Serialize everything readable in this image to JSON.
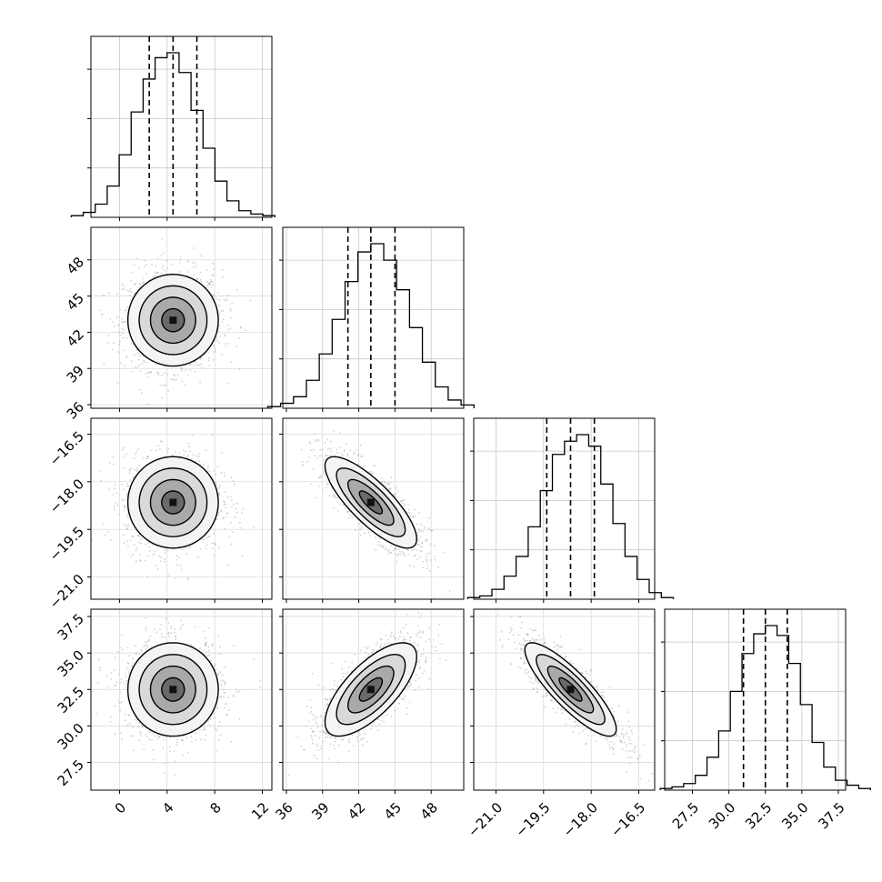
{
  "chart_data": {
    "type": "corner",
    "parameters": [
      {
        "ticks": [
          0,
          4,
          8,
          12
        ],
        "tick_labels": [
          "0",
          "4",
          "8",
          "12"
        ],
        "range": [
          -2.4,
          12.8
        ],
        "mean": 4.5,
        "sigma": 1.9,
        "quantiles": [
          2.5,
          4.5,
          6.5
        ]
      },
      {
        "ticks": [
          36,
          39,
          42,
          45,
          48
        ],
        "tick_labels": [
          "36",
          "39",
          "42",
          "45",
          "48"
        ],
        "range": [
          35.7,
          50.7
        ],
        "mean": 43.0,
        "sigma": 1.9,
        "quantiles": [
          41.1,
          43.0,
          45.0
        ]
      },
      {
        "ticks": [
          -21.0,
          -19.5,
          -18.0,
          -16.5
        ],
        "tick_labels": [
          "−21.0",
          "−19.5",
          "−18.0",
          "−16.5"
        ],
        "range": [
          -21.7,
          -16.0
        ],
        "mean": -18.65,
        "sigma": 0.72,
        "quantiles": [
          -19.4,
          -18.65,
          -17.9
        ]
      },
      {
        "ticks": [
          27.5,
          30.0,
          32.5,
          35.0,
          37.5
        ],
        "tick_labels": [
          "27.5",
          "30.0",
          "32.5",
          "35.0",
          "37.5"
        ],
        "range": [
          25.6,
          38.0
        ],
        "mean": 32.5,
        "sigma": 1.6,
        "quantiles": [
          31.0,
          32.5,
          34.0
        ]
      }
    ],
    "correlations": [
      [
        1.0,
        0.0,
        0.0,
        0.0
      ],
      [
        0.0,
        1.0,
        -0.8,
        0.7
      ],
      [
        0.0,
        -0.8,
        1.0,
        -0.85
      ],
      [
        0.0,
        0.7,
        -0.85,
        1.0
      ]
    ],
    "histograms": [
      [
        1,
        3,
        8,
        19,
        38,
        64,
        84,
        97,
        100,
        88,
        65,
        42,
        22,
        10,
        4,
        2,
        1
      ],
      [
        1,
        3,
        7,
        17,
        33,
        54,
        77,
        95,
        100,
        90,
        72,
        49,
        28,
        13,
        5,
        2
      ],
      [
        1,
        2,
        6,
        14,
        26,
        44,
        66,
        88,
        96,
        100,
        93,
        70,
        46,
        26,
        12,
        4,
        1
      ],
      [
        1,
        2,
        4,
        9,
        20,
        36,
        60,
        83,
        95,
        100,
        94,
        77,
        52,
        29,
        14,
        6,
        3,
        1
      ]
    ],
    "contour_levels": [
      0.5,
      1.0,
      1.5,
      2.0
    ],
    "grid": true
  }
}
